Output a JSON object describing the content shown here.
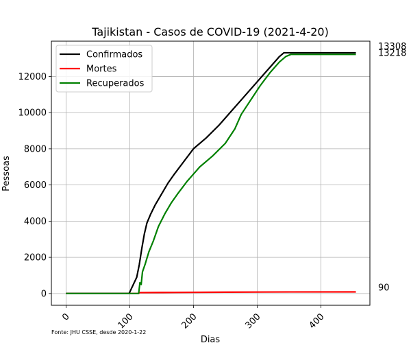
{
  "chart_data": {
    "type": "line",
    "title": "Tajikistan - Casos de COVID-19 (2021-4-20)",
    "xlabel": "Dias",
    "ylabel": "Pessoas",
    "xlim": [
      -23,
      477
    ],
    "ylim": [
      -650,
      13950
    ],
    "xticks": [
      0,
      100,
      200,
      300,
      400
    ],
    "yticks": [
      0,
      2000,
      4000,
      6000,
      8000,
      10000,
      12000
    ],
    "grid": true,
    "legend": "top-left",
    "source_note": "Fonte: JHU CSSE, desde 2020-1-22",
    "series": [
      {
        "name": "Confirmados",
        "color": "#000000",
        "end_label": "13308",
        "x": [
          0,
          99,
          103,
          107,
          111,
          115,
          119,
          123,
          127,
          133,
          140,
          150,
          160,
          170,
          185,
          200,
          220,
          240,
          260,
          280,
          300,
          320,
          335,
          342,
          455
        ],
        "y": [
          0,
          0,
          300,
          600,
          900,
          1600,
          2500,
          3300,
          3900,
          4400,
          4900,
          5500,
          6100,
          6600,
          7300,
          8000,
          8600,
          9300,
          10100,
          10900,
          11700,
          12500,
          13100,
          13308,
          13308
        ]
      },
      {
        "name": "Mortes",
        "color": "#ff0000",
        "end_label": "90",
        "x": [
          0,
          100,
          114,
          115,
          150,
          250,
          350,
          455
        ],
        "y": [
          0,
          0,
          0,
          50,
          55,
          75,
          88,
          90
        ]
      },
      {
        "name": "Recuperados",
        "color": "#008000",
        "end_label": "13218",
        "x": [
          0,
          114,
          116,
          118,
          120,
          124,
          130,
          137,
          145,
          155,
          165,
          175,
          190,
          200,
          210,
          230,
          250,
          265,
          275,
          290,
          305,
          320,
          335,
          345,
          353,
          455
        ],
        "y": [
          0,
          0,
          600,
          500,
          1200,
          1600,
          2300,
          2900,
          3700,
          4400,
          5000,
          5500,
          6200,
          6600,
          7000,
          7600,
          8300,
          9100,
          9900,
          10700,
          11500,
          12200,
          12800,
          13100,
          13218,
          13218
        ]
      }
    ]
  }
}
